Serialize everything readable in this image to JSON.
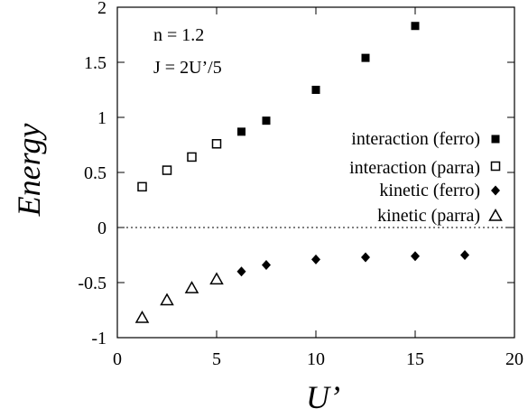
{
  "chart_data": {
    "type": "scatter",
    "title": "",
    "xlabel": "U’",
    "ylabel": "Energy",
    "xlim": [
      0,
      20
    ],
    "ylim": [
      -1,
      2
    ],
    "xticks": [
      0,
      5,
      10,
      15,
      20
    ],
    "xtick_labels": [
      "0",
      "5",
      "10",
      "15",
      "20"
    ],
    "yticks": [
      -1,
      -0.5,
      0,
      0.5,
      1,
      1.5,
      2
    ],
    "ytick_labels": [
      "-1",
      "-0.5",
      "0",
      "0.5",
      "1",
      "1.5",
      "2"
    ],
    "grid": false,
    "zero_line": "dotted",
    "legend_position": "right",
    "annotations": [
      "n = 1.2",
      "J = 2U’/5"
    ],
    "series": [
      {
        "name": "interaction (ferro)",
        "marker": "filled-square",
        "x": [
          6.25,
          7.5,
          10,
          12.5,
          15
        ],
        "y": [
          0.87,
          0.97,
          1.25,
          1.54,
          1.83
        ]
      },
      {
        "name": "interaction (parra)",
        "marker": "open-square",
        "x": [
          1.25,
          2.5,
          3.75,
          5
        ],
        "y": [
          0.37,
          0.52,
          0.64,
          0.76
        ]
      },
      {
        "name": "kinetic (ferro)",
        "marker": "filled-diamond",
        "x": [
          6.25,
          7.5,
          10,
          12.5,
          15,
          17.5
        ],
        "y": [
          -0.4,
          -0.34,
          -0.29,
          -0.27,
          -0.26,
          -0.25
        ]
      },
      {
        "name": "kinetic (parra)",
        "marker": "open-triangle",
        "x": [
          1.25,
          2.5,
          3.75,
          5
        ],
        "y": [
          -0.82,
          -0.66,
          -0.55,
          -0.47
        ]
      }
    ],
    "colors": {
      "axis": "#000000",
      "marker": "#000000",
      "background": "#ffffff"
    }
  }
}
